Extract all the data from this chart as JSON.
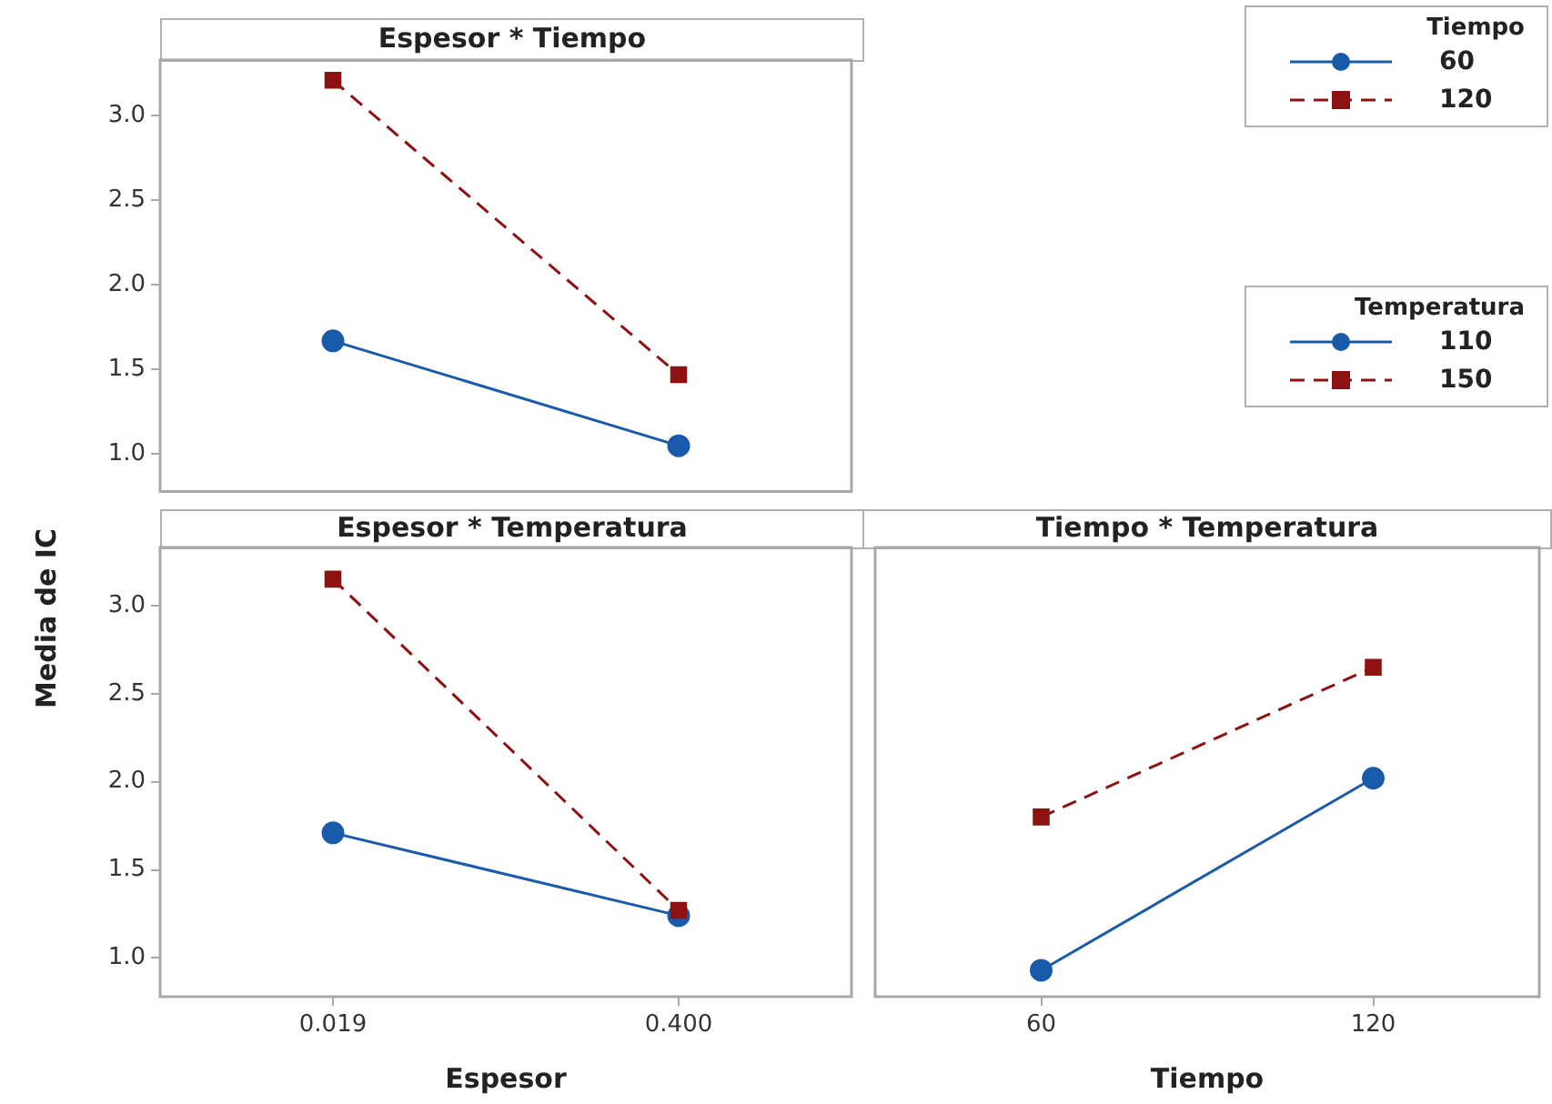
{
  "chart_data": [
    {
      "type": "line",
      "title": "Espesor * Tiempo",
      "categories": [
        "0.019",
        "0.400"
      ],
      "ylim": [
        0.78,
        3.33
      ],
      "yticks": [
        {
          "value": 1,
          "label": "1.0"
        },
        {
          "value": 1.5,
          "label": "1.5"
        },
        {
          "value": 2,
          "label": "2.0"
        },
        {
          "value": 2.5,
          "label": "2.5"
        },
        {
          "value": 3,
          "label": "3.0"
        }
      ],
      "tick_labels": "y",
      "grid": false,
      "legend": "right",
      "legend_title": "Tiempo",
      "series": [
        {
          "name": "60",
          "color": "#1a5aab",
          "marker": "circle",
          "line_style": "solid",
          "values": [
            1.67,
            1.05
          ]
        },
        {
          "name": "120",
          "color": "#8e1212",
          "marker": "square",
          "line_style": "dashed",
          "values": [
            3.21,
            1.47
          ]
        }
      ]
    },
    {
      "type": "line",
      "title": "Espesor * Temperatura",
      "xlabel": "Espesor",
      "ylabel": "Media de IC",
      "categories": [
        "0.019",
        "0.400"
      ],
      "ylim": [
        0.78,
        3.33
      ],
      "yticks": [
        {
          "value": 1,
          "label": "1.0"
        },
        {
          "value": 1.5,
          "label": "1.5"
        },
        {
          "value": 2,
          "label": "2.0"
        },
        {
          "value": 2.5,
          "label": "2.5"
        },
        {
          "value": 3,
          "label": "3.0"
        }
      ],
      "grid": false,
      "legend": "right",
      "legend_title": "Temperatura",
      "series": [
        {
          "name": "110",
          "color": "#1a5aab",
          "marker": "circle",
          "line_style": "solid",
          "values": [
            1.71,
            1.24
          ]
        },
        {
          "name": "150",
          "color": "#8e1212",
          "marker": "square",
          "line_style": "dashed",
          "values": [
            3.15,
            1.27
          ]
        }
      ]
    },
    {
      "type": "line",
      "title": "Tiempo * Temperatura",
      "xlabel": "Tiempo",
      "categories": [
        "60",
        "120"
      ],
      "ylim": [
        0.78,
        3.33
      ],
      "tick_labels": "x",
      "grid": false,
      "series": [
        {
          "color": "#1a5aab",
          "marker": "circle",
          "line_style": "solid",
          "values": [
            0.93,
            2.02
          ]
        },
        {
          "color": "#8e1212",
          "marker": "square",
          "line_style": "dashed",
          "values": [
            1.8,
            2.65
          ]
        }
      ]
    }
  ]
}
